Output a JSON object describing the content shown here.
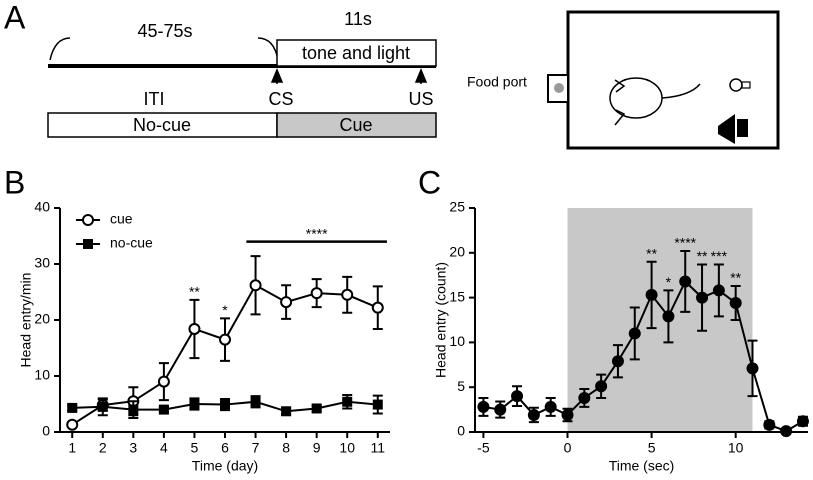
{
  "panel_a": {
    "label": "A",
    "iti_duration": "45-75s",
    "cue_duration": "11s",
    "cue_stimulus": "tone and light",
    "iti": "ITI",
    "cs": "CS",
    "us": "US",
    "no_cue": "No-cue",
    "cue": "Cue",
    "food_port": "Food port"
  },
  "chart_data": [
    {
      "type": "line",
      "panel_label": "B",
      "xlabel": "Time (day)",
      "ylabel": "Head entry/min",
      "x": [
        1,
        2,
        3,
        4,
        5,
        6,
        7,
        8,
        9,
        10,
        11
      ],
      "xlim": [
        0.6,
        11.4
      ],
      "xticks": [
        1,
        2,
        3,
        4,
        5,
        6,
        7,
        8,
        9,
        10,
        11
      ],
      "ylim": [
        0,
        40
      ],
      "yticks": [
        0,
        10,
        20,
        30,
        40
      ],
      "legend": "upper-left",
      "series": [
        {
          "name": "cue",
          "color": "#000000",
          "marker": "open-circle",
          "values": [
            1.3,
            4.8,
            5.5,
            9,
            18.4,
            16.5,
            26.2,
            23.2,
            24.8,
            24.5,
            22.2
          ],
          "errors": [
            0.3,
            1,
            2.5,
            3.3,
            5.2,
            3.8,
            5.2,
            3,
            2.5,
            3.2,
            3.8
          ]
        },
        {
          "name": "no-cue",
          "color": "#000000",
          "marker": "square",
          "values": [
            4.3,
            4.5,
            4,
            4,
            5,
            4.9,
            5.4,
            3.7,
            4.2,
            5.4,
            4.9
          ],
          "errors": [
            0.5,
            1.5,
            1.5,
            0.5,
            1,
            1,
            1,
            0.6,
            0.5,
            1.2,
            1.6
          ]
        }
      ],
      "annotations": [
        {
          "x": 5,
          "text": "**"
        },
        {
          "x": 6,
          "text": "*"
        }
      ],
      "bracket": {
        "x": [
          6.7,
          11.3
        ],
        "y": 34,
        "text": "****"
      }
    },
    {
      "type": "line",
      "panel_label": "C",
      "xlabel": "Time (sec)",
      "ylabel": "Head entry (count)",
      "x": [
        -5,
        -4,
        -3,
        -2,
        -1,
        0,
        1,
        2,
        3,
        4,
        5,
        6,
        7,
        8,
        9,
        10,
        11,
        12,
        13,
        14
      ],
      "xlim": [
        -5.5,
        14.3
      ],
      "xticks": [
        -5,
        0,
        5,
        10
      ],
      "ylim": [
        0,
        25
      ],
      "yticks": [
        0,
        5,
        10,
        15,
        20,
        25
      ],
      "shade": [
        0,
        11
      ],
      "shade_color": "#c8c8c8",
      "series": [
        {
          "name": null,
          "color": "#000000",
          "marker": "filled-circle",
          "values": [
            2.8,
            2.5,
            4,
            1.9,
            2.8,
            1.9,
            3.8,
            5.1,
            7.9,
            11,
            15.3,
            12.9,
            16.8,
            15,
            15.8,
            14.4,
            7.1,
            0.8,
            0.1,
            1.2
          ],
          "errors": [
            1,
            0.9,
            1.1,
            0.8,
            1,
            0.7,
            1,
            1.3,
            1.8,
            2.9,
            3.7,
            2.9,
            3.4,
            3.7,
            2.9,
            1.9,
            3.1,
            0.4,
            0.1,
            0.5
          ]
        }
      ],
      "annotations": [
        {
          "x": 5,
          "text": "**"
        },
        {
          "x": 6,
          "text": "*"
        },
        {
          "x": 7,
          "text": "****"
        },
        {
          "x": 8,
          "text": "**"
        },
        {
          "x": 9,
          "text": "***"
        },
        {
          "x": 10,
          "text": "**"
        }
      ]
    }
  ]
}
